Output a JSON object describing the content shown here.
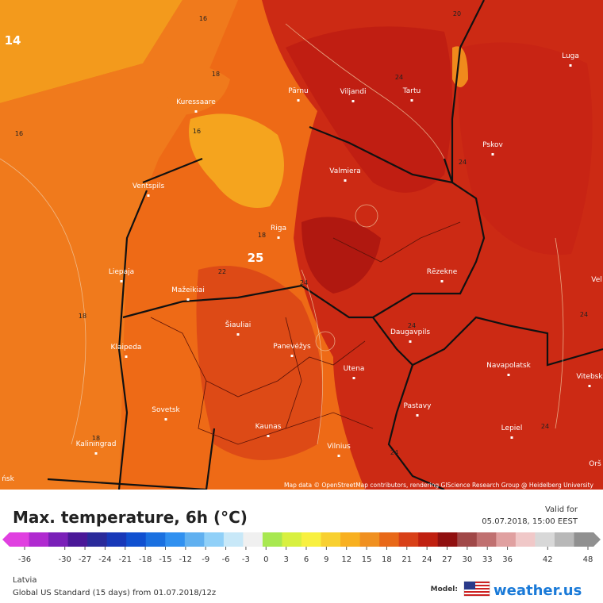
{
  "map": {
    "cities": [
      "Pärnu",
      "Viljandi",
      "Tartu",
      "Luga",
      "Kuressaare",
      "Pskov",
      "Ventspils",
      "Valmiera",
      "Riga",
      "Liepaja",
      "Rēzekne",
      "Mažeikiai",
      "Šiauliai",
      "Panevėžys",
      "Daugavpils",
      "Klaipeda",
      "Utena",
      "Navapolatsk",
      "Sovetsk",
      "Pastavy",
      "Vitebsk",
      "Kaunas",
      "Lepiel",
      "Kaliningrad",
      "Vilnius",
      "Vel",
      "Orš",
      "ńsk"
    ],
    "contour_labels": [
      16,
      18,
      16,
      16,
      18,
      18,
      20,
      24,
      24,
      18,
      22,
      24,
      24,
      24,
      24,
      24
    ],
    "min_label": 14,
    "max_label": 25,
    "attribution": "Map data © OpenStreetMap contributors, rendering GIScience Research Group @ Heidelberg University"
  },
  "legend": {
    "title": "Max. temperature, 6h (°C)",
    "valid_for": "Valid for",
    "valid_time": "05.07.2018, 15:00 EEST",
    "ticks": [
      -36,
      -30,
      -27,
      -24,
      -21,
      -18,
      -15,
      -12,
      -9,
      -6,
      -3,
      0,
      3,
      6,
      9,
      12,
      15,
      18,
      21,
      24,
      27,
      30,
      33,
      36,
      42,
      48
    ],
    "colors": [
      "#e040e0",
      "#b02ad0",
      "#7a20b8",
      "#4a1898",
      "#2a2a9a",
      "#1838b8",
      "#1050d0",
      "#1a70e0",
      "#3090f0",
      "#60b0f0",
      "#90d0f8",
      "#c8e8f8",
      "#f0f0f0",
      "#a8e850",
      "#d8f040",
      "#f8f040",
      "#f8d030",
      "#f8b020",
      "#f09020",
      "#e86818",
      "#d84018",
      "#c02010",
      "#901010",
      "#a04848",
      "#c07070",
      "#e0a0a0",
      "#f0c8c8",
      "#d8d8d8",
      "#b8b8b8",
      "#909090"
    ]
  },
  "footer": {
    "region": "Latvia",
    "model_run": "Global US Standard (15 days) from 01.07.2018/12z",
    "model_label": "Model:",
    "brand": "weather.us"
  }
}
